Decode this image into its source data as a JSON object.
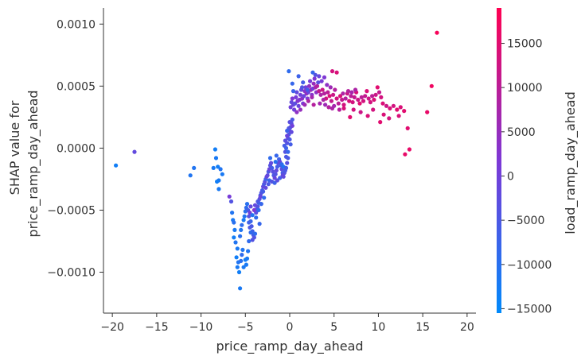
{
  "chart_data": {
    "type": "scatter",
    "title": "",
    "xlabel": "price_ramp_day_ahead",
    "ylabel_line1": "SHAP value for",
    "ylabel_line2": "price_ramp_day_ahead",
    "xlim": [
      -21,
      21
    ],
    "ylim": [
      -0.00133,
      0.00113
    ],
    "xticks": [
      -20,
      -15,
      -10,
      -5,
      0,
      5,
      10,
      15,
      20
    ],
    "xtick_labels": [
      "−20",
      "−15",
      "−10",
      "−5",
      "0",
      "5",
      "10",
      "15",
      "20"
    ],
    "yticks": [
      0.001,
      0.0005,
      0.0,
      -0.0005,
      -0.001
    ],
    "ytick_labels": [
      "0.0010",
      "0.0005",
      "0.0000",
      "−0.0005",
      "−0.0010"
    ],
    "grid": false,
    "colorbar": {
      "label": "load_ramp_day_ahead",
      "range": [
        -15500,
        19000
      ],
      "ticks": [
        15000,
        10000,
        5000,
        0,
        -5000,
        -10000,
        -15000
      ],
      "tick_labels": [
        "15000",
        "10000",
        "5000",
        "0",
        "−5000",
        "−10000",
        "−15000"
      ],
      "colors": [
        "#008afb",
        "#7d38d6",
        "#ff0051"
      ]
    },
    "points": [
      [
        -19.6,
        -0.00014,
        -13000
      ],
      [
        -17.5,
        -3e-05,
        -2000
      ],
      [
        -11.2,
        -0.00022,
        -11000
      ],
      [
        -10.8,
        -0.00016,
        -11000
      ],
      [
        -8.6,
        -0.00016,
        -12000
      ],
      [
        -8.4,
        -1e-05,
        -13000
      ],
      [
        -8.3,
        -8e-05,
        -12000
      ],
      [
        -8.1,
        -0.00015,
        -13000
      ],
      [
        -8.0,
        -0.00026,
        -12000
      ],
      [
        -7.8,
        -0.00017,
        -11000
      ],
      [
        -7.6,
        -0.00021,
        -12000
      ],
      [
        -8.2,
        -0.00027,
        -13000
      ],
      [
        -8.0,
        -0.00033,
        -12000
      ],
      [
        -6.8,
        -0.00039,
        1000
      ],
      [
        -6.6,
        -0.00043,
        -4000
      ],
      [
        -6.5,
        -0.00052,
        -11000
      ],
      [
        -6.4,
        -0.00058,
        -12000
      ],
      [
        -6.3,
        -0.0006,
        -10000
      ],
      [
        -6.2,
        -0.00066,
        -12000
      ],
      [
        -6.3,
        -0.00072,
        -13000
      ],
      [
        -6.1,
        -0.00076,
        -11000
      ],
      [
        -5.9,
        -0.00081,
        -12000
      ],
      [
        -6.0,
        -0.00088,
        -13000
      ],
      [
        -5.8,
        -0.00092,
        -11000
      ],
      [
        -5.9,
        -0.00096,
        -12000
      ],
      [
        -5.7,
        -0.001,
        -13000
      ],
      [
        -5.6,
        -0.00113,
        -12000
      ],
      [
        -5.5,
        -0.00091,
        -10000
      ],
      [
        -5.4,
        -0.00086,
        -9000
      ],
      [
        -5.3,
        -0.00082,
        -11000
      ],
      [
        -5.2,
        -0.00096,
        -12000
      ],
      [
        -5.0,
        -0.0009,
        -13000
      ],
      [
        -4.9,
        -0.00094,
        -12000
      ],
      [
        -4.8,
        -0.00089,
        -12000
      ],
      [
        -4.7,
        -0.00083,
        -11000
      ],
      [
        -4.6,
        -0.00075,
        -9000
      ],
      [
        -5.6,
        -0.00071,
        -10000
      ],
      [
        -5.5,
        -0.00066,
        -11000
      ],
      [
        -5.4,
        -0.00062,
        -9000
      ],
      [
        -5.2,
        -0.00058,
        -12000
      ],
      [
        -5.1,
        -0.00055,
        -11000
      ],
      [
        -5.0,
        -0.00051,
        -10000
      ],
      [
        -4.9,
        -0.00048,
        -9000
      ],
      [
        -4.8,
        -0.00045,
        -10000
      ],
      [
        -4.7,
        -0.0005,
        -6000
      ],
      [
        -4.6,
        -0.00055,
        -4000
      ],
      [
        -4.5,
        -0.00052,
        0
      ],
      [
        -4.4,
        -0.00059,
        -8000
      ],
      [
        -4.3,
        -0.00063,
        -5000
      ],
      [
        -4.2,
        -0.00067,
        -7000
      ],
      [
        -4.1,
        -0.0007,
        -6000
      ],
      [
        -4.0,
        -0.00072,
        -4000
      ],
      [
        -3.9,
        -0.00069,
        -9000
      ],
      [
        -4.6,
        -0.0006,
        -7000
      ],
      [
        -4.5,
        -0.00064,
        -5000
      ],
      [
        -4.4,
        -0.00068,
        -9000
      ],
      [
        -4.2,
        -0.00054,
        -11000
      ],
      [
        -3.8,
        -0.00052,
        -3000
      ],
      [
        -3.7,
        -0.00049,
        -6000
      ],
      [
        -3.6,
        -0.00047,
        -4000
      ],
      [
        -3.5,
        -0.00044,
        -8000
      ],
      [
        -3.4,
        -0.00041,
        -3000
      ],
      [
        -3.3,
        -0.00038,
        -7000
      ],
      [
        -3.2,
        -0.00036,
        -4000
      ],
      [
        -3.1,
        -0.00034,
        -6000
      ],
      [
        -3.0,
        -0.00031,
        -2000
      ],
      [
        -2.9,
        -0.00029,
        -5000
      ],
      [
        -2.8,
        -0.00027,
        -3000
      ],
      [
        -2.7,
        -0.00025,
        -7000
      ],
      [
        -2.6,
        -0.00023,
        -1000
      ],
      [
        -3.9,
        -0.00046,
        -2000
      ],
      [
        -3.6,
        -0.00043,
        -5000
      ],
      [
        -3.3,
        -0.00039,
        -1000
      ],
      [
        -3.0,
        -0.00035,
        -6000
      ],
      [
        -2.7,
        -0.00032,
        -2000
      ],
      [
        -2.4,
        -0.00029,
        -5000
      ],
      [
        -3.5,
        -0.0005,
        -9000
      ],
      [
        -3.2,
        -0.00045,
        -8000
      ],
      [
        -2.9,
        -0.0004,
        -9000
      ],
      [
        -3.8,
        -0.00056,
        -9000
      ],
      [
        -3.4,
        -0.00061,
        -8000
      ],
      [
        -4.2,
        -0.00074,
        -4000
      ],
      [
        -4.0,
        -0.0005,
        2000
      ],
      [
        -4.4,
        -0.00047,
        -2000
      ],
      [
        -2.5,
        -0.00022,
        -2000
      ],
      [
        -2.4,
        -0.00019,
        -5000
      ],
      [
        -2.3,
        -0.00017,
        -1000
      ],
      [
        -2.2,
        -0.00014,
        -4000
      ],
      [
        -2.1,
        -0.00012,
        -2000
      ],
      [
        -2.0,
        -0.00016,
        -6000
      ],
      [
        -1.9,
        -0.00019,
        -3000
      ],
      [
        -1.8,
        -0.00022,
        -5000
      ],
      [
        -1.7,
        -0.00024,
        -1000
      ],
      [
        -1.6,
        -0.00021,
        -4000
      ],
      [
        -1.5,
        -0.00018,
        -2000
      ],
      [
        -1.4,
        -0.00015,
        -6000
      ],
      [
        -1.3,
        -0.00012,
        -3000
      ],
      [
        -1.2,
        -9e-05,
        -7000
      ],
      [
        -1.1,
        -0.00011,
        -2000
      ],
      [
        -1.0,
        -0.00014,
        -5000
      ],
      [
        -0.9,
        -0.00017,
        -3000
      ],
      [
        -0.8,
        -0.0002,
        -6000
      ],
      [
        -0.7,
        -0.00023,
        -2000
      ],
      [
        -0.6,
        -0.0002,
        -4000
      ],
      [
        -2.3,
        -0.00026,
        -8000
      ],
      [
        -2.0,
        -0.00027,
        -4000
      ],
      [
        -1.7,
        -0.00028,
        -7000
      ],
      [
        -1.4,
        -0.00026,
        -3000
      ],
      [
        -1.1,
        -0.00024,
        -6000
      ],
      [
        -0.8,
        -0.00022,
        -2000
      ],
      [
        -0.5,
        -0.00018,
        -5000
      ],
      [
        -2.2,
        -8e-05,
        -9000
      ],
      [
        -1.5,
        -6e-05,
        -8000
      ],
      [
        -0.9,
        -0.00013,
        -9000
      ],
      [
        -0.7,
        -0.00015,
        -11000
      ],
      [
        -1.6,
        -0.00011,
        -10000
      ],
      [
        -0.4,
        -0.00016,
        -6000
      ],
      [
        -0.3,
        -0.00012,
        -3000
      ],
      [
        -0.2,
        -8e-05,
        -5000
      ],
      [
        -0.5,
        -3e-05,
        -4000
      ],
      [
        -0.4,
        0.0,
        -7000
      ],
      [
        -0.3,
        4e-05,
        -4000
      ],
      [
        -0.2,
        8e-05,
        -3000
      ],
      [
        -0.1,
        0.00011,
        -5000
      ],
      [
        0.0,
        0.00014,
        -2000
      ],
      [
        0.1,
        0.00017,
        -4000
      ],
      [
        0.2,
        0.0002,
        -3000
      ],
      [
        0.3,
        0.00023,
        -5000
      ],
      [
        -0.6,
        2e-05,
        -6000
      ],
      [
        -0.5,
        6e-05,
        -3000
      ],
      [
        -0.3,
        0.0001,
        -1000
      ],
      [
        -0.1,
        0.00016,
        -4000
      ],
      [
        0.0,
        7e-05,
        -5000
      ],
      [
        0.2,
        0.00013,
        -2000
      ],
      [
        0.1,
        3e-05,
        -6000
      ],
      [
        -0.4,
        -7e-05,
        -5000
      ],
      [
        -0.2,
        -3e-05,
        -8000
      ],
      [
        0.3,
        0.00018,
        0
      ],
      [
        -0.3,
        0.00014,
        -7000
      ],
      [
        0.0,
        0.00021,
        -3000
      ],
      [
        0.1,
        0.00033,
        0
      ],
      [
        0.2,
        0.00037,
        -2000
      ],
      [
        0.3,
        0.0004,
        2000
      ],
      [
        0.4,
        0.00035,
        -1000
      ],
      [
        0.5,
        0.00031,
        0
      ],
      [
        0.6,
        0.00036,
        -3000
      ],
      [
        0.7,
        0.00041,
        1000
      ],
      [
        0.8,
        0.00045,
        -2000
      ],
      [
        0.9,
        0.00038,
        3000
      ],
      [
        1.0,
        0.00034,
        -1000
      ],
      [
        1.1,
        0.00039,
        2000
      ],
      [
        1.2,
        0.00043,
        0
      ],
      [
        1.3,
        0.00047,
        -2000
      ],
      [
        1.4,
        0.0004,
        4000
      ],
      [
        1.5,
        0.00036,
        1000
      ],
      [
        1.6,
        0.00042,
        -1000
      ],
      [
        1.7,
        0.00046,
        3000
      ],
      [
        1.8,
        0.00049,
        0
      ],
      [
        1.9,
        0.00044,
        5000
      ],
      [
        2.0,
        0.0004,
        2000
      ],
      [
        2.1,
        0.00045,
        -1000
      ],
      [
        2.2,
        0.0005,
        4000
      ],
      [
        2.3,
        0.00054,
        1000
      ],
      [
        2.4,
        0.00047,
        6000
      ],
      [
        2.5,
        0.00043,
        3000
      ],
      [
        2.6,
        0.00048,
        0
      ],
      [
        2.7,
        0.00052,
        5000
      ],
      [
        2.8,
        0.00056,
        2000
      ],
      [
        2.9,
        0.00049,
        7000
      ],
      [
        3.0,
        0.00045,
        4000
      ],
      [
        -0.1,
        0.00062,
        -9000
      ],
      [
        0.3,
        0.00052,
        -8000
      ],
      [
        0.4,
        0.00046,
        -7000
      ],
      [
        1.0,
        0.00058,
        -7000
      ],
      [
        1.5,
        0.00053,
        -6000
      ],
      [
        2.6,
        0.00061,
        -8000
      ],
      [
        2.9,
        0.00059,
        -4000
      ],
      [
        3.3,
        0.00058,
        -1000
      ],
      [
        3.6,
        0.00054,
        1000
      ],
      [
        3.9,
        0.00057,
        2000
      ],
      [
        4.2,
        0.00051,
        4000
      ],
      [
        4.6,
        0.00049,
        6000
      ],
      [
        3.1,
        0.0005,
        9000
      ],
      [
        3.3,
        0.00046,
        11000
      ],
      [
        3.5,
        0.00043,
        8000
      ],
      [
        3.7,
        0.00047,
        12000
      ],
      [
        3.9,
        0.00044,
        9000
      ],
      [
        4.1,
        0.0004,
        13000
      ],
      [
        4.3,
        0.00045,
        10000
      ],
      [
        4.5,
        0.00042,
        14000
      ],
      [
        4.7,
        0.00038,
        11000
      ],
      [
        4.9,
        0.00043,
        12000
      ],
      [
        5.1,
        0.00047,
        9000
      ],
      [
        5.3,
        0.0004,
        13000
      ],
      [
        5.5,
        0.00036,
        10000
      ],
      [
        5.7,
        0.00042,
        14000
      ],
      [
        5.9,
        0.00039,
        11000
      ],
      [
        6.1,
        0.00035,
        13000
      ],
      [
        6.3,
        0.0004,
        9000
      ],
      [
        6.5,
        0.00044,
        12000
      ],
      [
        6.7,
        0.00038,
        14000
      ],
      [
        6.9,
        0.00042,
        10000
      ],
      [
        7.1,
        0.00037,
        13000
      ],
      [
        7.3,
        0.00041,
        11000
      ],
      [
        7.5,
        0.00045,
        14000
      ],
      [
        7.7,
        0.00039,
        12000
      ],
      [
        7.9,
        0.00036,
        15000
      ],
      [
        8.1,
        0.00041,
        10000
      ],
      [
        8.3,
        0.00038,
        13000
      ],
      [
        8.5,
        0.00042,
        11000
      ],
      [
        8.7,
        0.00046,
        14000
      ],
      [
        8.9,
        0.0004,
        12000
      ],
      [
        9.1,
        0.00037,
        13000
      ],
      [
        9.3,
        0.00042,
        10000
      ],
      [
        9.5,
        0.00039,
        14000
      ],
      [
        9.7,
        0.00043,
        12000
      ],
      [
        9.9,
        0.00049,
        15000
      ],
      [
        10.1,
        0.00045,
        11000
      ],
      [
        10.3,
        0.00041,
        13000
      ],
      [
        10.5,
        0.00036,
        14000
      ],
      [
        10.9,
        0.00034,
        12000
      ],
      [
        11.3,
        0.00032,
        14000
      ],
      [
        11.7,
        0.00034,
        13000
      ],
      [
        12.1,
        0.00031,
        15000
      ],
      [
        12.5,
        0.00033,
        14000
      ],
      [
        12.9,
        0.0003,
        15000
      ],
      [
        10.6,
        0.00027,
        14000
      ],
      [
        11.2,
        0.00024,
        13000
      ],
      [
        12.3,
        0.00026,
        14000
      ],
      [
        13.3,
        0.00016,
        15000
      ],
      [
        13.0,
        -5e-05,
        16000
      ],
      [
        13.5,
        -1e-05,
        16000
      ],
      [
        15.5,
        0.00029,
        16000
      ],
      [
        16.0,
        0.0005,
        17000
      ],
      [
        16.6,
        0.00093,
        18000
      ],
      [
        4.8,
        0.00062,
        13000
      ],
      [
        5.3,
        0.00061,
        14000
      ],
      [
        6.1,
        0.00032,
        14000
      ],
      [
        6.8,
        0.00025,
        15000
      ],
      [
        7.2,
        0.00031,
        13000
      ],
      [
        8.0,
        0.00029,
        12000
      ],
      [
        8.8,
        0.00026,
        14000
      ],
      [
        9.4,
        0.00031,
        13000
      ],
      [
        10.2,
        0.00021,
        15000
      ],
      [
        3.4,
        0.00036,
        7000
      ],
      [
        3.8,
        0.00039,
        8000
      ],
      [
        4.0,
        0.00035,
        6000
      ],
      [
        4.4,
        0.00033,
        9000
      ],
      [
        4.8,
        0.00032,
        8000
      ],
      [
        5.0,
        0.00034,
        7000
      ],
      [
        5.6,
        0.00031,
        9000
      ],
      [
        6.0,
        0.00044,
        8000
      ],
      [
        6.6,
        0.00046,
        9000
      ],
      [
        7.0,
        0.00045,
        7000
      ],
      [
        7.4,
        0.00047,
        8000
      ],
      [
        1.7,
        0.00035,
        6000
      ],
      [
        2.1,
        0.00038,
        8000
      ],
      [
        2.5,
        0.00041,
        7000
      ],
      [
        2.7,
        0.00035,
        9000
      ],
      [
        1.2,
        0.00031,
        5000
      ],
      [
        0.8,
        0.00029,
        4000
      ],
      [
        2.0,
        0.00047,
        -6000
      ],
      [
        1.4,
        0.00049,
        -4000
      ],
      [
        3.2,
        0.00053,
        -3000
      ]
    ]
  }
}
